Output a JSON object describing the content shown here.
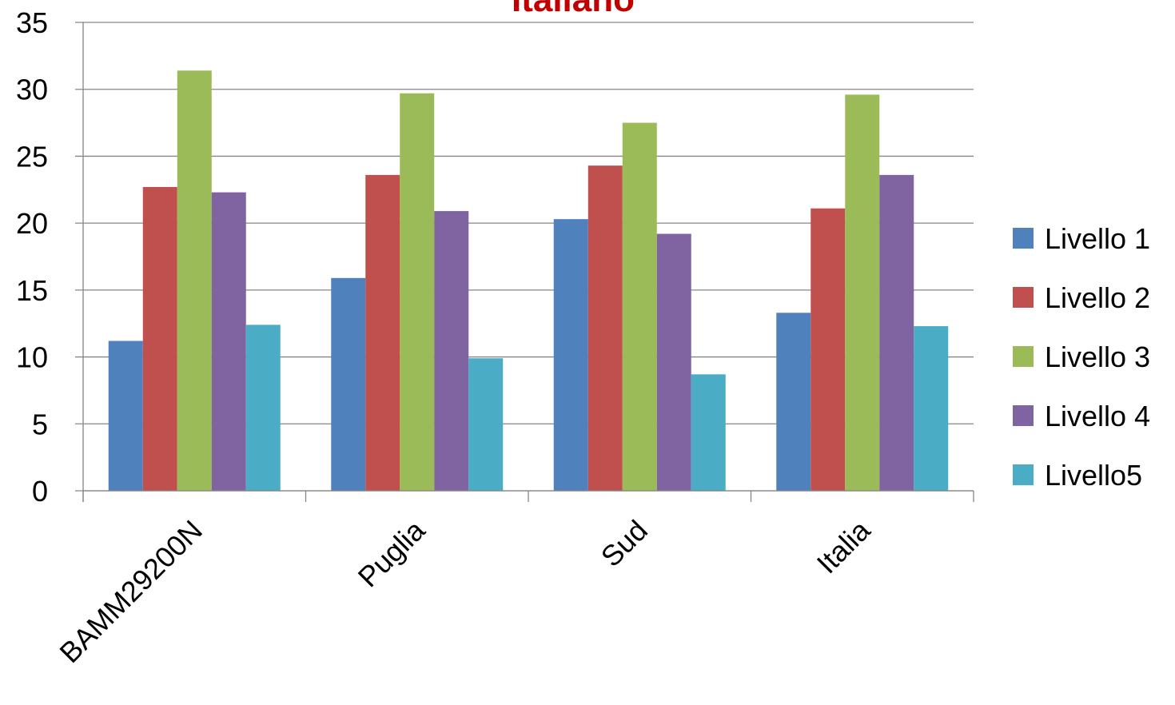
{
  "chart_data": {
    "type": "bar",
    "title": "Italiano",
    "xlabel": "",
    "ylabel": "",
    "categories": [
      "BAMM29200N",
      "Puglia",
      "Sud",
      "Italia"
    ],
    "ylim": [
      0,
      35
    ],
    "yticks": [
      0,
      5,
      10,
      15,
      20,
      25,
      30,
      35
    ],
    "grid": true,
    "legend_position": "right",
    "series": [
      {
        "name": "Livello 1",
        "color": "#4F81BD",
        "values": [
          11.2,
          15.9,
          20.3,
          13.3
        ]
      },
      {
        "name": "Livello 2",
        "color": "#C0504D",
        "values": [
          22.7,
          23.6,
          24.3,
          21.1
        ]
      },
      {
        "name": "Livello 3",
        "color": "#9BBB59",
        "values": [
          31.4,
          29.7,
          27.5,
          29.6
        ]
      },
      {
        "name": "Livello 4",
        "color": "#8064A2",
        "values": [
          22.3,
          20.9,
          19.2,
          23.6
        ]
      },
      {
        "name": "Livello5",
        "color": "#4BACC6",
        "values": [
          12.4,
          9.9,
          8.7,
          12.3
        ]
      }
    ],
    "title_color": "#C00000"
  }
}
